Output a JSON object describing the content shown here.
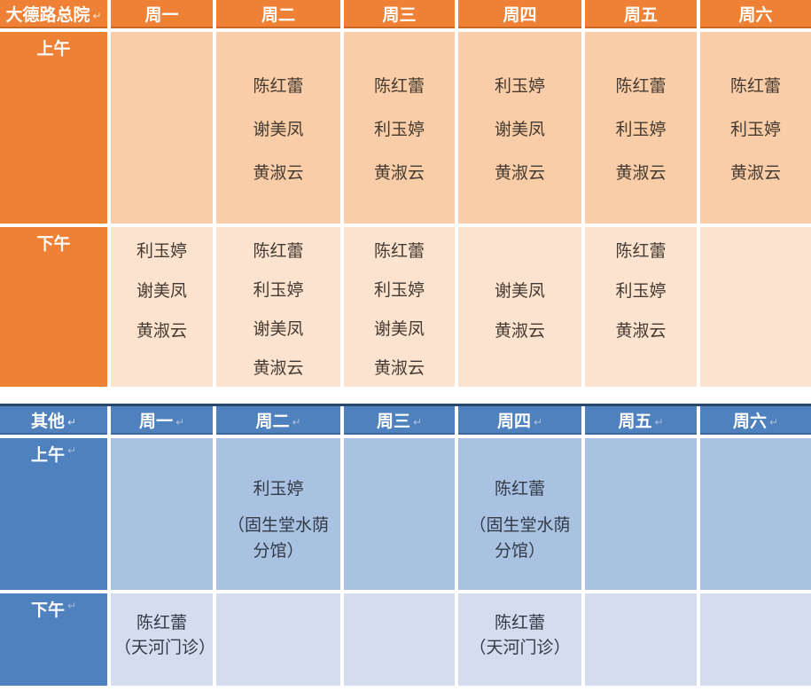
{
  "colors": {
    "orange_header": "#ee8135",
    "orange_morning_cell": "#f9cda7",
    "orange_afternoon_cell": "#fbe3cf",
    "blue_header": "#4e81bd",
    "blue_morning_cell": "#a9c2e2",
    "blue_afternoon_cell": "#d4ddee"
  },
  "marks": {
    "return": "↵"
  },
  "hospital": {
    "title": "大德路总院",
    "days": [
      "周一",
      "周二",
      "周三",
      "周四",
      "周五",
      "周六"
    ],
    "row_am": {
      "label": "上午",
      "cells": [
        {
          "names": []
        },
        {
          "names": [
            "陈红蕾",
            "谢美凤",
            "黄淑云"
          ]
        },
        {
          "names": [
            "陈红蕾",
            "利玉婷",
            "黄淑云"
          ]
        },
        {
          "names": [
            "利玉婷",
            "谢美凤",
            "黄淑云"
          ]
        },
        {
          "names": [
            "陈红蕾",
            "利玉婷",
            "黄淑云"
          ]
        },
        {
          "names": [
            "陈红蕾",
            "利玉婷",
            "黄淑云"
          ]
        }
      ]
    },
    "row_pm": {
      "label": "下午",
      "cells": [
        {
          "names": [
            "利玉婷",
            "谢美凤",
            "黄淑云"
          ]
        },
        {
          "names": [
            "陈红蕾",
            "利玉婷",
            "谢美凤",
            "黄淑云"
          ]
        },
        {
          "names": [
            "陈红蕾",
            "利玉婷",
            "谢美凤",
            "黄淑云"
          ]
        },
        {
          "names": [
            "",
            "谢美凤",
            "黄淑云"
          ]
        },
        {
          "names": [
            "陈红蕾",
            "利玉婷",
            "黄淑云"
          ]
        },
        {
          "names": []
        }
      ]
    }
  },
  "other": {
    "title": "其他",
    "days": [
      "周一",
      "周二",
      "周三",
      "周四",
      "周五",
      "周六"
    ],
    "row_am": {
      "label": "上午",
      "cells": [
        {},
        {
          "name": "利玉婷",
          "venue": "（固生堂水荫分馆）"
        },
        {},
        {
          "name": "陈红蕾",
          "venue": "（固生堂水荫分馆）"
        },
        {},
        {}
      ]
    },
    "row_pm": {
      "label": "下午",
      "cells": [
        {
          "name": "陈红蕾",
          "venue": "（天河门诊）"
        },
        {},
        {},
        {
          "name": "陈红蕾",
          "venue": "（天河门诊）"
        },
        {},
        {}
      ]
    }
  }
}
